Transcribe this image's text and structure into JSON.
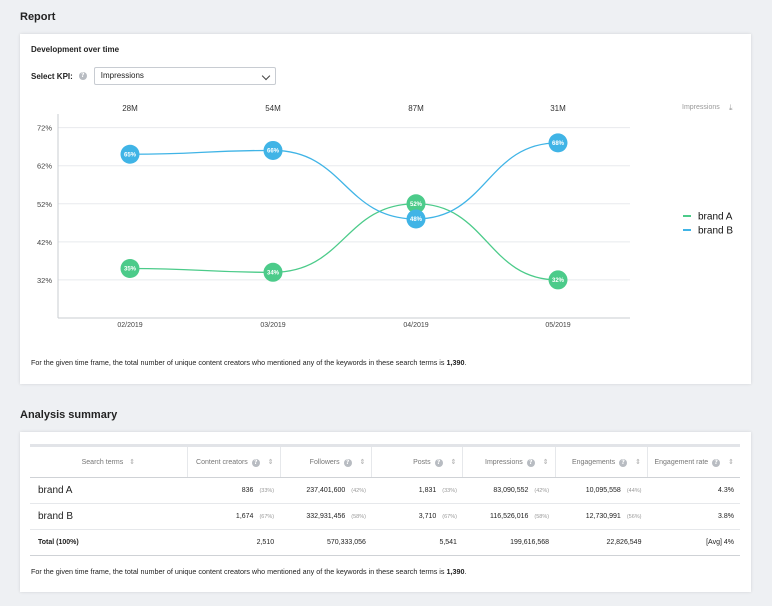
{
  "report": {
    "title": "Report"
  },
  "development": {
    "title": "Development over time",
    "kpi_label": "Select KPI:",
    "kpi_value": "Impressions",
    "impressions_label": "Impressions",
    "footnote_text": "For the given time frame, the total number of unique content creators who mentioned any of the keywords in these search terms is ",
    "footnote_value": "1,390",
    "footnote_end": "."
  },
  "chart_data": {
    "type": "line",
    "x": [
      "02/2019",
      "03/2019",
      "04/2019",
      "05/2019"
    ],
    "top_labels": [
      "28M",
      "54M",
      "87M",
      "31M"
    ],
    "yticks": [
      "72%",
      "62%",
      "52%",
      "42%",
      "32%"
    ],
    "ylim": [
      22,
      74
    ],
    "series": [
      {
        "name": "brand A",
        "color": "#4ccb8a",
        "values": [
          35,
          34,
          52,
          32
        ],
        "labels": [
          "35%",
          "34%",
          "52%",
          "32%"
        ]
      },
      {
        "name": "brand B",
        "color": "#40b4e6",
        "values": [
          65,
          66,
          48,
          68
        ],
        "labels": [
          "65%",
          "66%",
          "48%",
          "68%"
        ]
      }
    ],
    "legend_position": "right"
  },
  "summary": {
    "title": "Analysis summary",
    "headers": [
      "Search terms",
      "Content creators",
      "Followers",
      "Posts",
      "Impressions",
      "Engagements",
      "Engagement rate"
    ],
    "rows": [
      {
        "name": "brand A",
        "creators": "836",
        "creators_pct": "(33%)",
        "followers": "237,401,600",
        "followers_pct": "(42%)",
        "posts": "1,831",
        "posts_pct": "(33%)",
        "impressions": "83,090,552",
        "impressions_pct": "(42%)",
        "engagements": "10,095,558",
        "engagements_pct": "(44%)",
        "rate": "4.3%"
      },
      {
        "name": "brand B",
        "creators": "1,674",
        "creators_pct": "(67%)",
        "followers": "332,931,456",
        "followers_pct": "(58%)",
        "posts": "3,710",
        "posts_pct": "(67%)",
        "impressions": "116,526,016",
        "impressions_pct": "(58%)",
        "engagements": "12,730,991",
        "engagements_pct": "(56%)",
        "rate": "3.8%"
      }
    ],
    "total": {
      "name": "Total (100%)",
      "creators": "2,510",
      "followers": "570,333,056",
      "posts": "5,541",
      "impressions": "199,616,568",
      "engagements": "22,826,549",
      "rate": "[Avg] 4%"
    },
    "footnote_text": "For the given time frame, the total number of unique content creators who mentioned any of the keywords in these search terms is ",
    "footnote_value": "1,390",
    "footnote_end": "."
  }
}
